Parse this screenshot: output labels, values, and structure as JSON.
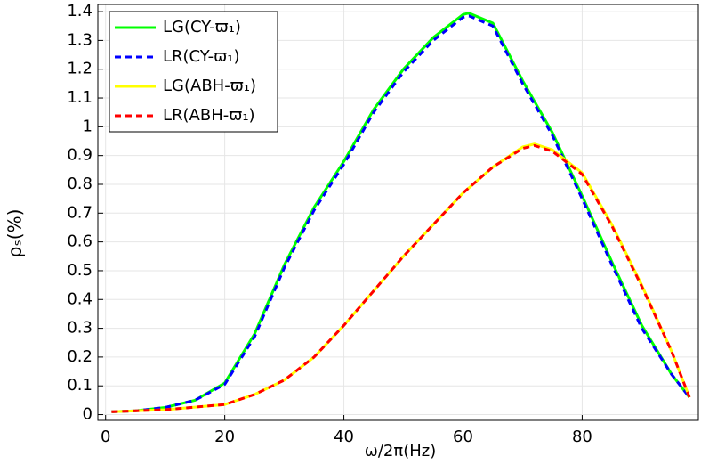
{
  "chart_data": {
    "type": "line",
    "xlabel": "ω/2π(Hz)",
    "ylabel": "ρₛ(%)",
    "xlim": [
      -1.3,
      99.5
    ],
    "ylim": [
      -0.02,
      1.425
    ],
    "xticks": [
      0,
      20,
      40,
      60,
      80
    ],
    "yticks": [
      0,
      0.1,
      0.2,
      0.3,
      0.4,
      0.5,
      0.6,
      0.7,
      0.8,
      0.9,
      1,
      1.1,
      1.2,
      1.3,
      1.4
    ],
    "grid": true,
    "legend": "upper left",
    "series": [
      {
        "name": "LG(CY-ϖ₁)",
        "color": "#00ff00",
        "style": "solid",
        "x": [
          1,
          5,
          10,
          15,
          20,
          25,
          30,
          35,
          40,
          45,
          50,
          55,
          60,
          61,
          65,
          70,
          75,
          80,
          85,
          90,
          95,
          98
        ],
        "values": [
          0.01,
          0.013,
          0.025,
          0.05,
          0.11,
          0.28,
          0.52,
          0.72,
          0.88,
          1.06,
          1.2,
          1.31,
          1.39,
          1.395,
          1.36,
          1.16,
          0.98,
          0.76,
          0.53,
          0.31,
          0.14,
          0.06
        ]
      },
      {
        "name": "LR(CY-ϖ₁)",
        "color": "#0000ff",
        "style": "dashed",
        "x": [
          1,
          5,
          10,
          15,
          20,
          25,
          30,
          35,
          40,
          45,
          50,
          55,
          60,
          61,
          65,
          70,
          75,
          80,
          85,
          90,
          95,
          98
        ],
        "values": [
          0.01,
          0.013,
          0.025,
          0.05,
          0.105,
          0.27,
          0.51,
          0.71,
          0.87,
          1.05,
          1.19,
          1.3,
          1.38,
          1.385,
          1.35,
          1.15,
          0.97,
          0.75,
          0.52,
          0.3,
          0.14,
          0.06
        ]
      },
      {
        "name": "LG(ABH-ϖ₁)",
        "color": "#ffff00",
        "style": "solid",
        "x": [
          1,
          10,
          20,
          25,
          30,
          35,
          40,
          45,
          50,
          55,
          60,
          65,
          70,
          72,
          75,
          80,
          85,
          90,
          95,
          98
        ],
        "values": [
          0.01,
          0.017,
          0.035,
          0.07,
          0.12,
          0.2,
          0.31,
          0.43,
          0.55,
          0.66,
          0.77,
          0.86,
          0.93,
          0.94,
          0.92,
          0.84,
          0.66,
          0.45,
          0.22,
          0.06
        ]
      },
      {
        "name": "LR(ABH-ϖ₁)",
        "color": "#ff0000",
        "style": "dashed",
        "x": [
          1,
          10,
          20,
          25,
          30,
          35,
          40,
          45,
          50,
          55,
          60,
          65,
          70,
          72,
          75,
          80,
          85,
          90,
          95,
          98
        ],
        "values": [
          0.01,
          0.017,
          0.035,
          0.07,
          0.12,
          0.2,
          0.31,
          0.43,
          0.55,
          0.66,
          0.77,
          0.86,
          0.925,
          0.935,
          0.915,
          0.835,
          0.655,
          0.445,
          0.22,
          0.06
        ]
      }
    ]
  }
}
